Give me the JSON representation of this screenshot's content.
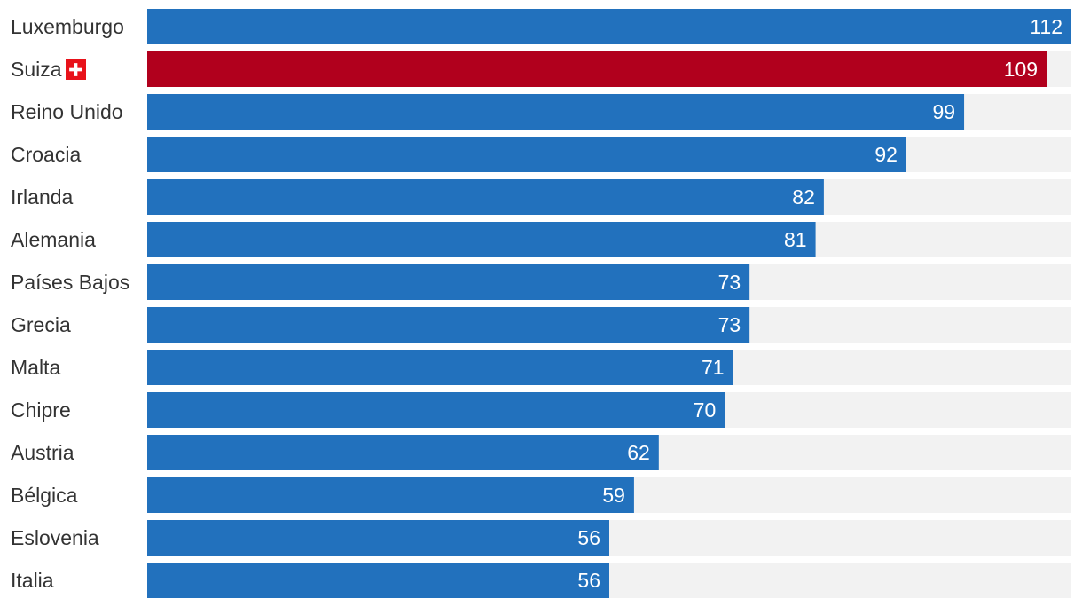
{
  "chart_data": {
    "type": "bar",
    "orientation": "horizontal",
    "categories": [
      "Luxemburgo",
      "Suiza",
      "Reino Unido",
      "Croacia",
      "Irlanda",
      "Alemania",
      "Países Bajos",
      "Grecia",
      "Malta",
      "Chipre",
      "Austria",
      "Bélgica",
      "Eslovenia",
      "Italia"
    ],
    "values": [
      112,
      109,
      99,
      92,
      82,
      81,
      73,
      73,
      71,
      70,
      62,
      59,
      56,
      56
    ],
    "highlight": {
      "category": "Suiza",
      "icon": "swiss-flag-icon"
    },
    "xlim": [
      0,
      112
    ],
    "grid": false,
    "legend": "none",
    "colors": {
      "bar": "#2271bd",
      "highlight_bar": "#b1001d",
      "track": "#f2f2f2",
      "label_text": "#333333",
      "value_text": "#ffffff",
      "flag_red": "#e8121a"
    }
  }
}
